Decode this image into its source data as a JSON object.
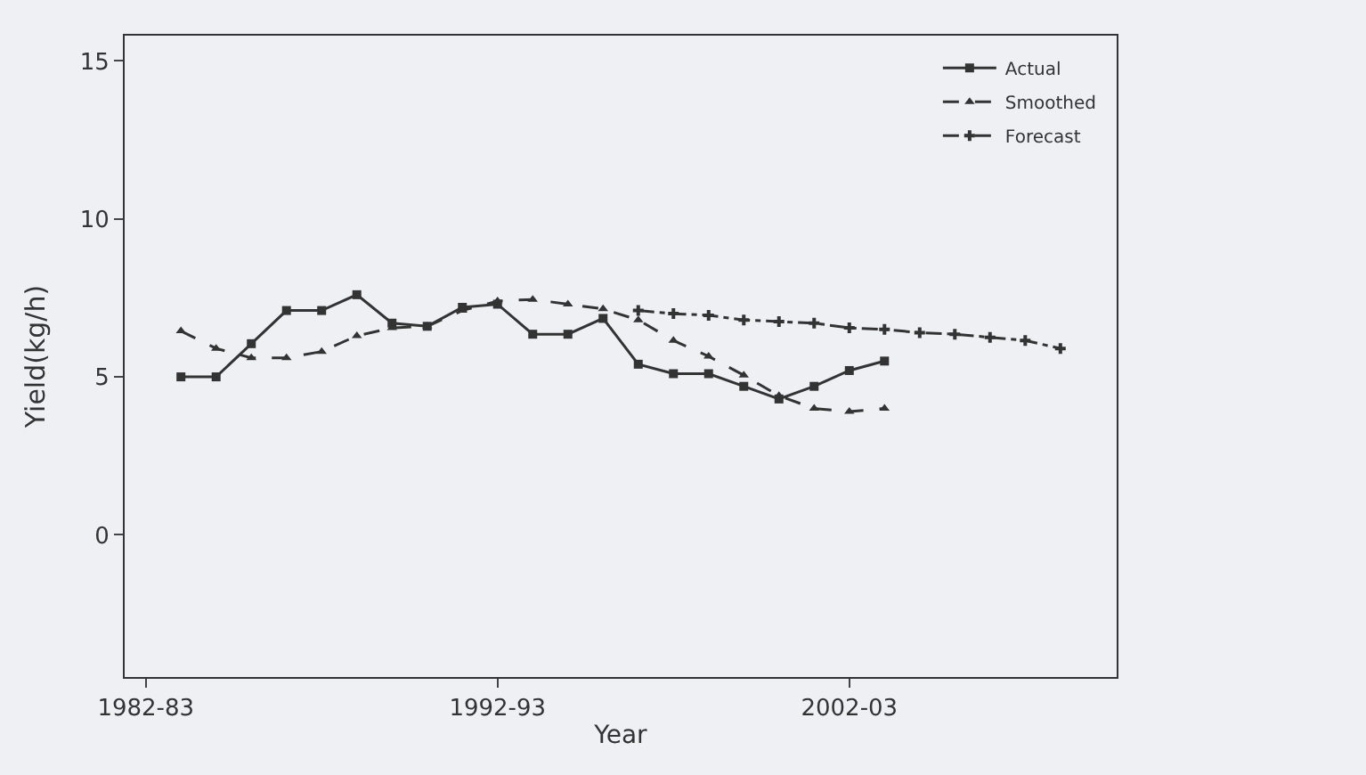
{
  "chart_data": {
    "type": "line",
    "xlabel": "Year",
    "ylabel": "Yield(kg/h)",
    "categories": [
      "1982-83",
      null,
      null,
      null,
      null,
      null,
      null,
      null,
      null,
      null,
      "1992-93",
      null,
      null,
      null,
      null,
      null,
      null,
      null,
      null,
      null,
      "2002-03",
      null,
      null,
      null,
      null,
      null,
      null
    ],
    "series": [
      {
        "name": "Actual",
        "color": "#333333",
        "line_style": "solid",
        "marker": "square",
        "values": [
          null,
          5.0,
          5.0,
          6.05,
          7.1,
          7.1,
          7.6,
          6.7,
          6.6,
          7.2,
          7.3,
          6.35,
          6.35,
          6.85,
          5.4,
          5.1,
          5.1,
          4.7,
          4.3,
          4.7,
          5.2,
          5.5,
          null,
          null,
          null,
          null,
          null
        ]
      },
      {
        "name": "Smoothed",
        "color": "#333333",
        "line_style": "dashed",
        "marker": "triangle",
        "values": [
          null,
          6.45,
          5.9,
          5.6,
          5.6,
          5.8,
          6.3,
          6.55,
          6.6,
          7.1,
          7.4,
          7.45,
          7.3,
          7.15,
          6.8,
          6.15,
          5.65,
          5.05,
          4.4,
          4.0,
          3.9,
          4.0,
          null,
          null,
          null,
          null,
          null
        ]
      },
      {
        "name": "Forecast",
        "color": "#333333",
        "line_style": "dashdot",
        "marker": "cross",
        "values": [
          null,
          null,
          null,
          null,
          null,
          null,
          null,
          null,
          null,
          null,
          null,
          null,
          null,
          null,
          7.1,
          7.0,
          6.95,
          6.8,
          6.75,
          6.7,
          6.55,
          6.5,
          6.4,
          6.35,
          6.25,
          6.15,
          5.9
        ]
      }
    ],
    "ylim": [
      -4.5,
      15.8
    ],
    "yticks": [
      0,
      5,
      10,
      15
    ],
    "grid": false,
    "legend": "top right"
  }
}
